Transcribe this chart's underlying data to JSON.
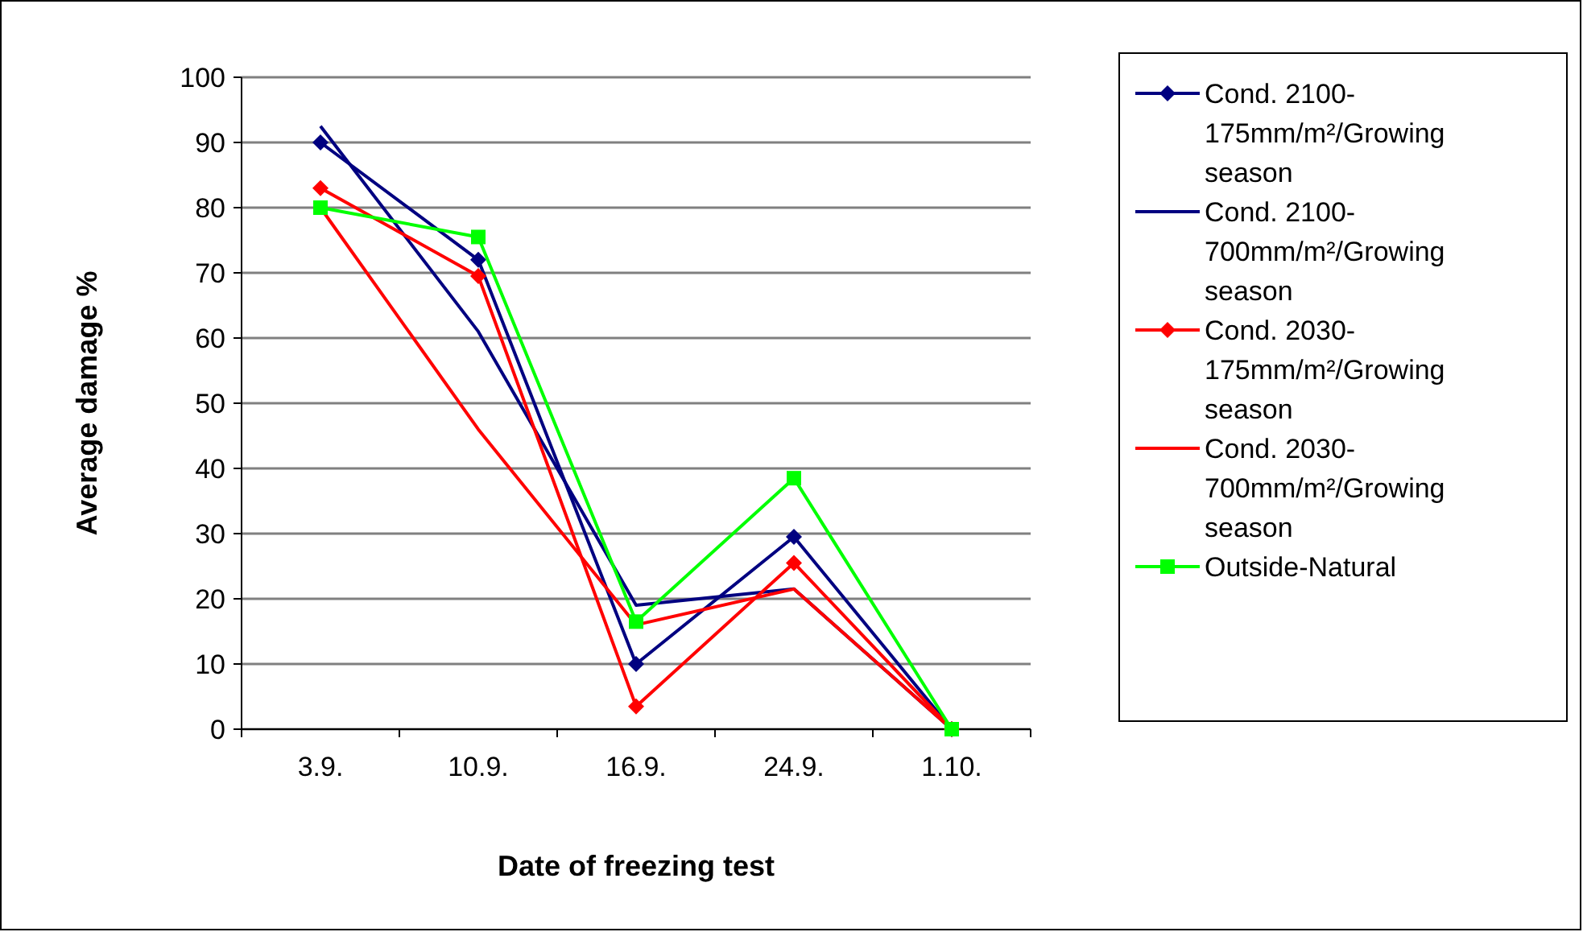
{
  "chart_data": {
    "type": "line",
    "xlabel": "Date of freezing test",
    "ylabel": "Average damage %",
    "categories": [
      "3.9.",
      "10.9.",
      "16.9.",
      "24.9.",
      "1.10."
    ],
    "ylim": [
      0,
      100
    ],
    "yticks": [
      0,
      10,
      20,
      30,
      40,
      50,
      60,
      70,
      80,
      90,
      100
    ],
    "grid": "y",
    "legend": "right",
    "line_style": "solid",
    "series": [
      {
        "name": "Cond. 2100-175mm/m²/Growing season",
        "color": "#000080",
        "marker": "diamond",
        "values": [
          90,
          72,
          10,
          29.5,
          0
        ]
      },
      {
        "name": "Cond. 2100-700mm/m²/Growing season",
        "color": "#000080",
        "marker": "none",
        "values": [
          92.5,
          61,
          19,
          21.5,
          0
        ]
      },
      {
        "name": "Cond. 2030-175mm/m²/Growing season",
        "color": "#ff0000",
        "marker": "diamond",
        "values": [
          83,
          69.5,
          3.5,
          25.5,
          0
        ]
      },
      {
        "name": "Cond. 2030-700mm/m²/Growing season",
        "color": "#ff0000",
        "marker": "none",
        "values": [
          80,
          46,
          16,
          21.5,
          0
        ]
      },
      {
        "name": "Outside-Natural",
        "color": "#00ff00",
        "marker": "square",
        "values": [
          80,
          75.5,
          16.5,
          38.5,
          0
        ]
      }
    ]
  }
}
